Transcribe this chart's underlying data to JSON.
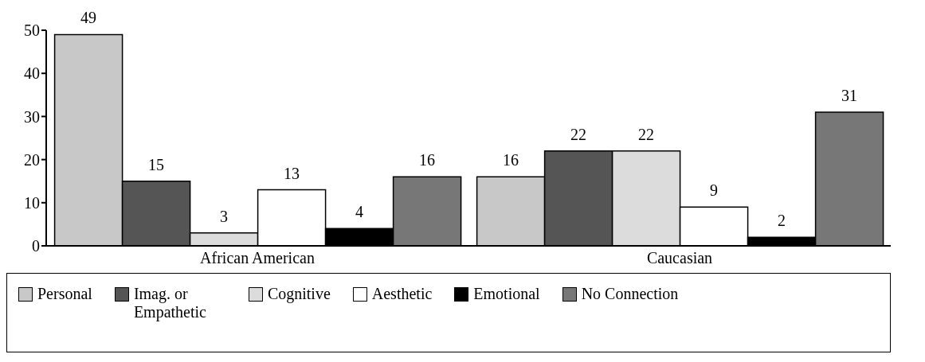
{
  "chart_data": {
    "type": "bar",
    "categories": [
      "African American",
      "Caucasian"
    ],
    "series": [
      {
        "name": "Personal",
        "color": "#c8c8c8",
        "values": [
          49,
          16
        ]
      },
      {
        "name": "Imag. or Empathetic",
        "color": "#555555",
        "values": [
          15,
          22
        ]
      },
      {
        "name": "Cognitive",
        "color": "#dcdcdc",
        "values": [
          3,
          22
        ]
      },
      {
        "name": "Aesthetic",
        "color": "#ffffff",
        "values": [
          13,
          9
        ]
      },
      {
        "name": "Emotional",
        "color": "#000000",
        "values": [
          4,
          2
        ]
      },
      {
        "name": "No Connection",
        "color": "#777777",
        "values": [
          16,
          31
        ]
      }
    ],
    "ylim": [
      0,
      50
    ],
    "yticks": [
      0,
      10,
      20,
      30,
      40,
      50
    ],
    "grid": false,
    "data_labels": true,
    "legend": "bottom"
  }
}
